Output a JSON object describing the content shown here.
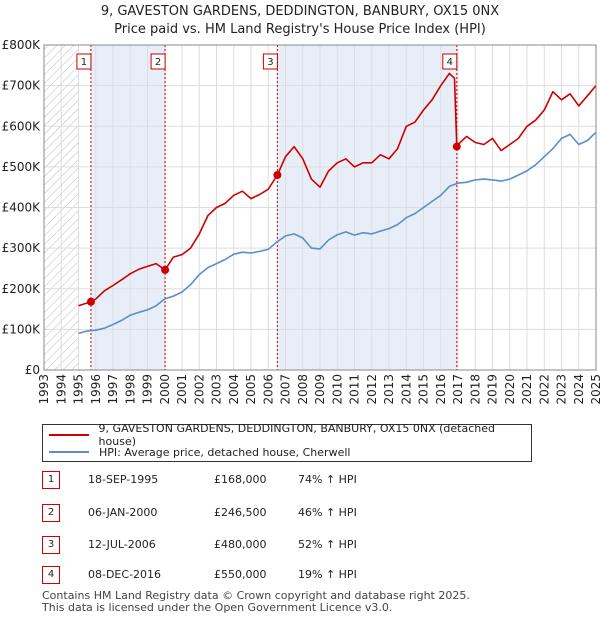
{
  "title_line1": "9, GAVESTON GARDENS, DEDDINGTON, BANBURY, OX15 0NX",
  "title_line2": "Price paid vs. HM Land Registry's House Price Index (HPI)",
  "chart_data": {
    "type": "line",
    "xlim": [
      1993,
      2025
    ],
    "ylim": [
      0,
      800000
    ],
    "x_ticks": [
      1993,
      1994,
      1995,
      1996,
      1997,
      1998,
      1999,
      2000,
      2001,
      2002,
      2003,
      2004,
      2005,
      2006,
      2007,
      2008,
      2009,
      2010,
      2011,
      2012,
      2013,
      2014,
      2015,
      2016,
      2017,
      2018,
      2019,
      2020,
      2021,
      2022,
      2023,
      2024,
      2025
    ],
    "y_ticks": [
      {
        "value": 0,
        "label": "£0"
      },
      {
        "value": 100000,
        "label": "£100K"
      },
      {
        "value": 200000,
        "label": "£200K"
      },
      {
        "value": 300000,
        "label": "£300K"
      },
      {
        "value": 400000,
        "label": "£400K"
      },
      {
        "value": 500000,
        "label": "£500K"
      },
      {
        "value": 600000,
        "label": "£600K"
      },
      {
        "value": 700000,
        "label": "£700K"
      },
      {
        "value": 800000,
        "label": "£800K"
      }
    ],
    "hatched_before": 1995.0,
    "colors": {
      "property": "#cc0000",
      "hpi": "#5b8ec9",
      "shade": "#e8eef8",
      "grid": "#dddddd"
    },
    "series": [
      {
        "name": "property",
        "x": [
          1995.0,
          1995.72,
          1996.0,
          1996.5,
          1997.0,
          1997.5,
          1998.0,
          1998.5,
          1999.0,
          1999.5,
          2000.02,
          2000.5,
          2001.0,
          2001.5,
          2002.0,
          2002.5,
          2003.0,
          2003.5,
          2004.0,
          2004.5,
          2005.0,
          2005.5,
          2006.0,
          2006.53,
          2007.0,
          2007.5,
          2008.0,
          2008.5,
          2009.0,
          2009.5,
          2010.0,
          2010.5,
          2011.0,
          2011.5,
          2012.0,
          2012.5,
          2013.0,
          2013.5,
          2014.0,
          2014.5,
          2015.0,
          2015.5,
          2016.0,
          2016.5,
          2016.8,
          2016.93,
          2017.0,
          2017.5,
          2018.0,
          2018.5,
          2019.0,
          2019.5,
          2020.0,
          2020.5,
          2021.0,
          2021.5,
          2022.0,
          2022.5,
          2023.0,
          2023.5,
          2024.0,
          2024.5,
          2025.0
        ],
        "values": [
          158000,
          168000,
          175000,
          195000,
          208000,
          222000,
          237000,
          248000,
          255000,
          262000,
          246500,
          278000,
          284000,
          300000,
          335000,
          380000,
          400000,
          410000,
          430000,
          440000,
          422000,
          432000,
          445000,
          480000,
          525000,
          550000,
          520000,
          470000,
          450000,
          490000,
          510000,
          520000,
          500000,
          510000,
          510000,
          530000,
          520000,
          545000,
          600000,
          610000,
          640000,
          665000,
          700000,
          730000,
          718000,
          550000,
          555000,
          575000,
          560000,
          555000,
          570000,
          540000,
          555000,
          570000,
          600000,
          615000,
          640000,
          685000,
          665000,
          680000,
          650000,
          675000,
          700000
        ]
      },
      {
        "name": "hpi",
        "x": [
          1995.0,
          1995.5,
          1996.0,
          1996.5,
          1997.0,
          1997.5,
          1998.0,
          1998.5,
          1999.0,
          1999.5,
          2000.0,
          2000.5,
          2001.0,
          2001.5,
          2002.0,
          2002.5,
          2003.0,
          2003.5,
          2004.0,
          2004.5,
          2005.0,
          2005.5,
          2006.0,
          2006.5,
          2007.0,
          2007.5,
          2008.0,
          2008.5,
          2009.0,
          2009.5,
          2010.0,
          2010.5,
          2011.0,
          2011.5,
          2012.0,
          2012.5,
          2013.0,
          2013.5,
          2014.0,
          2014.5,
          2015.0,
          2015.5,
          2016.0,
          2016.5,
          2017.0,
          2017.5,
          2018.0,
          2018.5,
          2019.0,
          2019.5,
          2020.0,
          2020.5,
          2021.0,
          2021.5,
          2022.0,
          2022.5,
          2023.0,
          2023.5,
          2024.0,
          2024.5,
          2025.0
        ],
        "values": [
          90000,
          96000,
          98000,
          103000,
          112000,
          122000,
          135000,
          142000,
          148000,
          158000,
          175000,
          182000,
          192000,
          210000,
          235000,
          252000,
          262000,
          272000,
          285000,
          290000,
          288000,
          292000,
          297000,
          315000,
          330000,
          335000,
          325000,
          300000,
          298000,
          320000,
          333000,
          340000,
          332000,
          338000,
          335000,
          342000,
          348000,
          358000,
          375000,
          385000,
          400000,
          415000,
          430000,
          452000,
          460000,
          462000,
          468000,
          470000,
          468000,
          465000,
          470000,
          480000,
          490000,
          505000,
          525000,
          545000,
          570000,
          580000,
          555000,
          565000,
          585000
        ]
      }
    ],
    "transactions": [
      {
        "num": "1",
        "x": 1995.72,
        "value": 168000,
        "date": "18-SEP-1995",
        "price": "£168,000",
        "hpi": "74% ↑ HPI"
      },
      {
        "num": "2",
        "x": 2000.02,
        "value": 246500,
        "date": "06-JAN-2000",
        "price": "£246,500",
        "hpi": "46% ↑ HPI"
      },
      {
        "num": "3",
        "x": 2006.53,
        "value": 480000,
        "date": "12-JUL-2006",
        "price": "£480,000",
        "hpi": "52% ↑ HPI"
      },
      {
        "num": "4",
        "x": 2016.93,
        "value": 550000,
        "date": "08-DEC-2016",
        "price": "£550,000",
        "hpi": "19% ↑ HPI"
      }
    ]
  },
  "legend": {
    "property_label": "9, GAVESTON GARDENS, DEDDINGTON, BANBURY, OX15 0NX (detached house)",
    "hpi_label": "HPI: Average price, detached house, Cherwell"
  },
  "footer_line1": "Contains HM Land Registry data © Crown copyright and database right 2025.",
  "footer_line2": "This data is licensed under the Open Government Licence v3.0."
}
